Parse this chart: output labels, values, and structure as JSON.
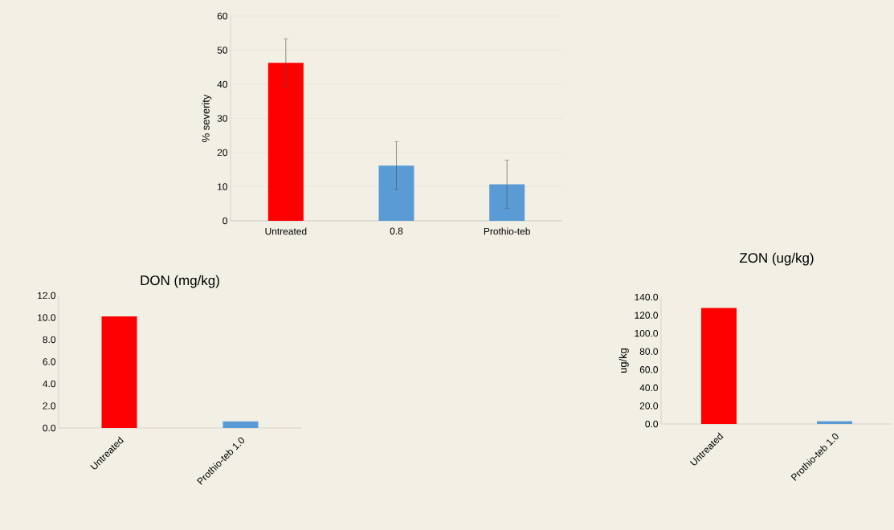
{
  "chart_data": [
    {
      "type": "bar",
      "ylabel": "% severity",
      "categories": [
        "Untreated",
        "0.8",
        "Prothio-teb"
      ],
      "values": [
        46.3,
        16.2,
        10.7
      ],
      "errors": [
        7.0,
        7.0,
        7.1
      ],
      "colors": [
        "#ff0000",
        "#5b9bd5",
        "#5b9bd5"
      ],
      "ylim": [
        0,
        60
      ],
      "yticks": [
        0,
        10,
        20,
        30,
        40,
        50,
        60
      ],
      "grid": "y"
    },
    {
      "type": "bar",
      "title": "DON (mg/kg)",
      "categories": [
        "Untreated",
        "Prothio-teb 1.0"
      ],
      "values": [
        10.1,
        0.6
      ],
      "colors": [
        "#ff0000",
        "#5b9bd5"
      ],
      "ylim": [
        0,
        12
      ],
      "yticks": [
        {
          "value": 0,
          "label": "0.0"
        },
        {
          "value": 2,
          "label": "2.0"
        },
        {
          "value": 4,
          "label": "4.0"
        },
        {
          "value": 6,
          "label": "6.0"
        },
        {
          "value": 8,
          "label": "8.0"
        },
        {
          "value": 10,
          "label": "10.0"
        },
        {
          "value": 12,
          "label": "12.0"
        }
      ]
    },
    {
      "type": "bar",
      "title": "ZON (ug/kg)",
      "ylabel": "ug/kg",
      "categories": [
        "Untreated",
        "Prothio-teb 1.0"
      ],
      "values": [
        128,
        3
      ],
      "colors": [
        "#ff0000",
        "#5b9bd5"
      ],
      "ylim": [
        0,
        140
      ],
      "yticks": [
        {
          "value": 0,
          "label": "0.0"
        },
        {
          "value": 20,
          "label": "20.0"
        },
        {
          "value": 40,
          "label": "40.0"
        },
        {
          "value": 60,
          "label": "60.0"
        },
        {
          "value": 80,
          "label": "80.0"
        },
        {
          "value": 100,
          "label": "100.0"
        },
        {
          "value": 120,
          "label": "120.0"
        },
        {
          "value": 140,
          "label": "140.0"
        }
      ]
    }
  ]
}
